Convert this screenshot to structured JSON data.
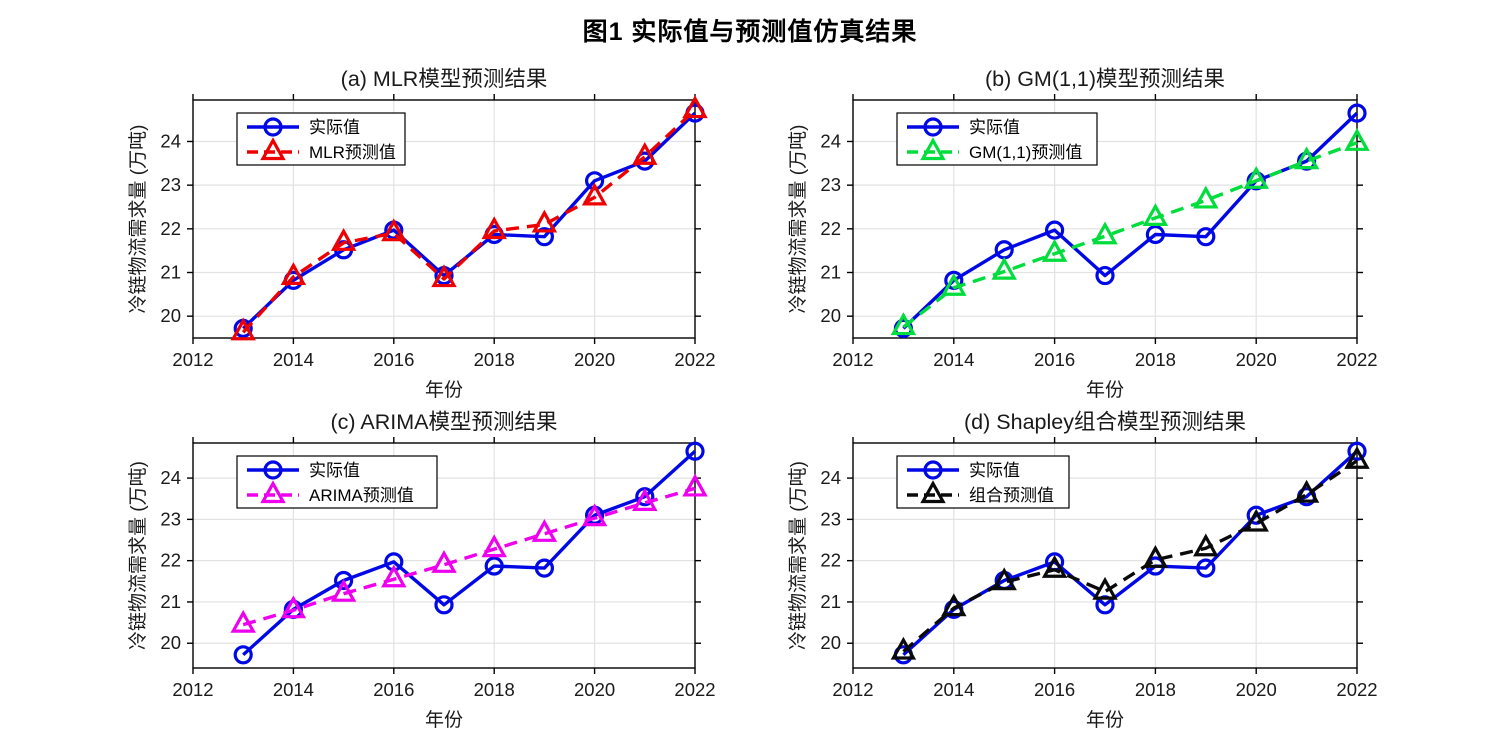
{
  "figure": {
    "title": "图1 实际值与预测值仿真结果"
  },
  "axes_style": {
    "grid_color": "#e2e2e2",
    "axis_color": "#000000",
    "tick_label_color": "#1a1a1a",
    "title_color": "#1a1a1a",
    "background": "#ffffff"
  },
  "chart_data": [
    {
      "type": "line",
      "panel": "a",
      "title": "(a) MLR模型预测结果",
      "xlabel": "年份",
      "ylabel": "冷链物流需求量 (万吨)",
      "x": [
        2013,
        2014,
        2015,
        2016,
        2017,
        2018,
        2019,
        2020,
        2021,
        2022
      ],
      "xticks": [
        2012,
        2014,
        2016,
        2018,
        2020,
        2022
      ],
      "yticks": [
        20,
        21,
        22,
        23,
        24
      ],
      "xlim": [
        2012,
        2022
      ],
      "ylim": [
        19.5,
        24.95
      ],
      "legend_position": "top-left",
      "series": [
        {
          "name": "实际值",
          "color": "#0008e6",
          "style": "solid",
          "marker": "circle",
          "values": [
            19.72,
            20.82,
            21.52,
            21.97,
            20.93,
            21.87,
            21.82,
            23.1,
            23.55,
            24.65
          ]
        },
        {
          "name": "MLR预测值",
          "color": "#ef0000",
          "style": "dashed",
          "marker": "triangle",
          "values": [
            19.63,
            20.9,
            21.68,
            21.9,
            20.85,
            21.95,
            22.1,
            22.72,
            23.65,
            24.72
          ]
        }
      ]
    },
    {
      "type": "line",
      "panel": "b",
      "title": "(b) GM(1,1)模型预测结果",
      "xlabel": "年份",
      "ylabel": "冷链物流需求量 (万吨)",
      "x": [
        2013,
        2014,
        2015,
        2016,
        2017,
        2018,
        2019,
        2020,
        2021,
        2022
      ],
      "xticks": [
        2012,
        2014,
        2016,
        2018,
        2020,
        2022
      ],
      "yticks": [
        20,
        21,
        22,
        23,
        24
      ],
      "xlim": [
        2012,
        2022
      ],
      "ylim": [
        19.5,
        24.95
      ],
      "legend_position": "top-left",
      "series": [
        {
          "name": "实际值",
          "color": "#0008e6",
          "style": "solid",
          "marker": "circle",
          "values": [
            19.72,
            20.82,
            21.52,
            21.97,
            20.93,
            21.87,
            21.82,
            23.1,
            23.55,
            24.65
          ]
        },
        {
          "name": "GM(1,1)预测值",
          "color": "#00dd3c",
          "style": "dashed",
          "marker": "triangle",
          "values": [
            19.75,
            20.65,
            21.02,
            21.43,
            21.83,
            22.25,
            22.65,
            23.1,
            23.55,
            23.97
          ]
        }
      ]
    },
    {
      "type": "line",
      "panel": "c",
      "title": "(c) ARIMA模型预测结果",
      "xlabel": "年份",
      "ylabel": "冷链物流需求量 (万吨)",
      "x": [
        2013,
        2014,
        2015,
        2016,
        2017,
        2018,
        2019,
        2020,
        2021,
        2022
      ],
      "xticks": [
        2012,
        2014,
        2016,
        2018,
        2020,
        2022
      ],
      "yticks": [
        20,
        21,
        22,
        23,
        24
      ],
      "xlim": [
        2012,
        2022
      ],
      "ylim": [
        19.4,
        24.85
      ],
      "legend_position": "top-left",
      "series": [
        {
          "name": "实际值",
          "color": "#0008e6",
          "style": "solid",
          "marker": "circle",
          "values": [
            19.72,
            20.82,
            21.52,
            21.97,
            20.93,
            21.87,
            21.82,
            23.1,
            23.55,
            24.65
          ]
        },
        {
          "name": "ARIMA预测值",
          "color": "#ee00ee",
          "style": "dashed",
          "marker": "triangle",
          "values": [
            20.45,
            20.8,
            21.2,
            21.55,
            21.9,
            22.28,
            22.65,
            23.03,
            23.4,
            23.75
          ]
        }
      ]
    },
    {
      "type": "line",
      "panel": "d",
      "title": "(d) Shapley组合模型预测结果",
      "xlabel": "年份",
      "ylabel": "冷链物流需求量 (万吨)",
      "x": [
        2013,
        2014,
        2015,
        2016,
        2017,
        2018,
        2019,
        2020,
        2021,
        2022
      ],
      "xticks": [
        2012,
        2014,
        2016,
        2018,
        2020,
        2022
      ],
      "yticks": [
        20,
        21,
        22,
        23,
        24
      ],
      "xlim": [
        2012,
        2022
      ],
      "ylim": [
        19.4,
        24.85
      ],
      "legend_position": "top-left",
      "series": [
        {
          "name": "实际值",
          "color": "#0008e6",
          "style": "solid",
          "marker": "circle",
          "values": [
            19.72,
            20.82,
            21.52,
            21.97,
            20.93,
            21.87,
            21.82,
            23.1,
            23.55,
            24.65
          ]
        },
        {
          "name": "组合预测值",
          "color": "#0a0a0a",
          "style": "dashed",
          "marker": "triangle",
          "values": [
            19.8,
            20.85,
            21.48,
            21.78,
            21.25,
            22.02,
            22.3,
            22.9,
            23.6,
            24.42
          ]
        }
      ]
    }
  ]
}
